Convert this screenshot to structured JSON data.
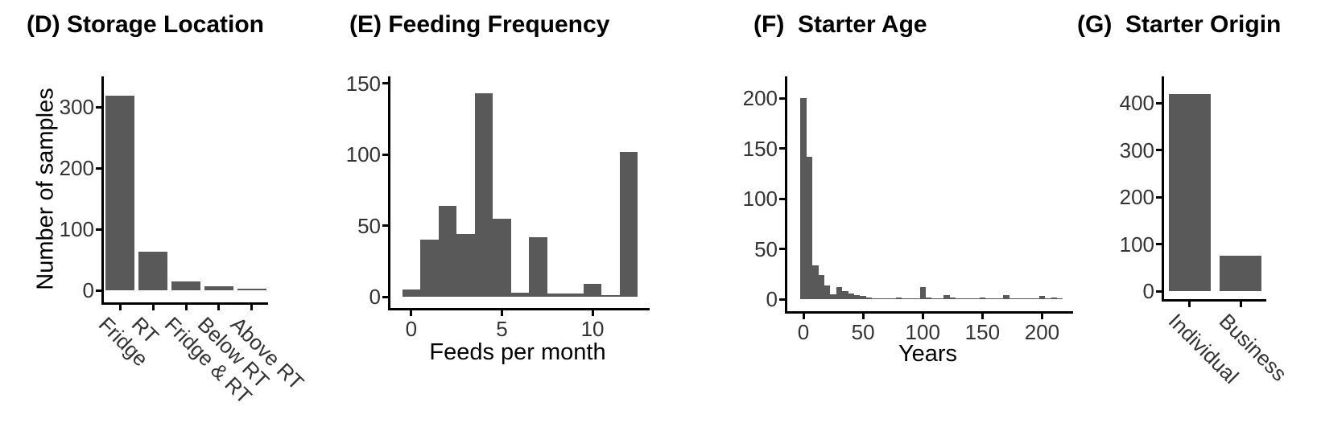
{
  "figure": {
    "background": "#ffffff",
    "bar_color": "#595959",
    "axis_color": "#000000",
    "tick_text_color": "#333333"
  },
  "chart_data": [
    {
      "id": "D",
      "type": "bar",
      "title": "(D) Storage Location",
      "ylabel": "Number of samples",
      "categories": [
        "Fridge",
        "RT",
        "Fridge & RT",
        "Below RT",
        "Above RT"
      ],
      "values": [
        318,
        63,
        15,
        6,
        2
      ],
      "yticks": [
        0,
        100,
        200,
        300
      ],
      "ylim": [
        0,
        350
      ],
      "rotated_x_labels": true,
      "grid": false
    },
    {
      "id": "E",
      "type": "histogram",
      "title": "(E) Feeding Frequency",
      "xlabel": "Feeds per month",
      "bin_width": 1,
      "bin_centers": [
        0,
        1,
        2,
        3,
        4,
        5,
        6,
        7,
        8,
        9,
        10,
        11,
        12
      ],
      "counts": [
        5,
        40,
        64,
        44,
        143,
        55,
        3,
        42,
        2,
        2,
        9,
        1,
        102
      ],
      "xticks": [
        0,
        5,
        10
      ],
      "xlim": [
        -1.15,
        13.15
      ],
      "yticks": [
        0,
        50,
        100,
        150
      ],
      "ylim": [
        0,
        155
      ],
      "grid": false
    },
    {
      "id": "F",
      "type": "histogram",
      "title": "(F)  Starter Age",
      "xlabel": "Years",
      "bin_width": 5,
      "bin_centers": [
        0,
        5,
        10,
        15,
        20,
        25,
        30,
        35,
        40,
        45,
        50,
        55,
        60,
        65,
        70,
        75,
        80,
        85,
        90,
        95,
        100,
        105,
        110,
        115,
        120,
        125,
        130,
        135,
        140,
        145,
        150,
        155,
        160,
        165,
        170,
        175,
        180,
        185,
        190,
        195,
        200,
        205,
        210,
        215
      ],
      "counts": [
        200,
        142,
        34,
        24,
        14,
        5,
        12,
        8,
        6,
        4,
        3,
        2,
        1,
        1,
        1,
        1,
        2,
        1,
        1,
        1,
        12,
        2,
        1,
        1,
        4,
        2,
        1,
        1,
        1,
        1,
        2,
        1,
        1,
        1,
        4,
        1,
        1,
        1,
        1,
        1,
        3,
        1,
        2,
        1
      ],
      "xticks": [
        0,
        50,
        100,
        150,
        200
      ],
      "xlim": [
        -13.5,
        226
      ],
      "yticks": [
        0,
        50,
        100,
        150,
        200
      ],
      "ylim": [
        0,
        222
      ],
      "grid": false
    },
    {
      "id": "G",
      "type": "bar",
      "title": "(G)  Starter Origin",
      "categories": [
        "Individual",
        "Business"
      ],
      "values": [
        420,
        75
      ],
      "yticks": [
        0,
        100,
        200,
        300,
        400
      ],
      "ylim": [
        0,
        457
      ],
      "rotated_x_labels": true,
      "grid": false
    }
  ]
}
